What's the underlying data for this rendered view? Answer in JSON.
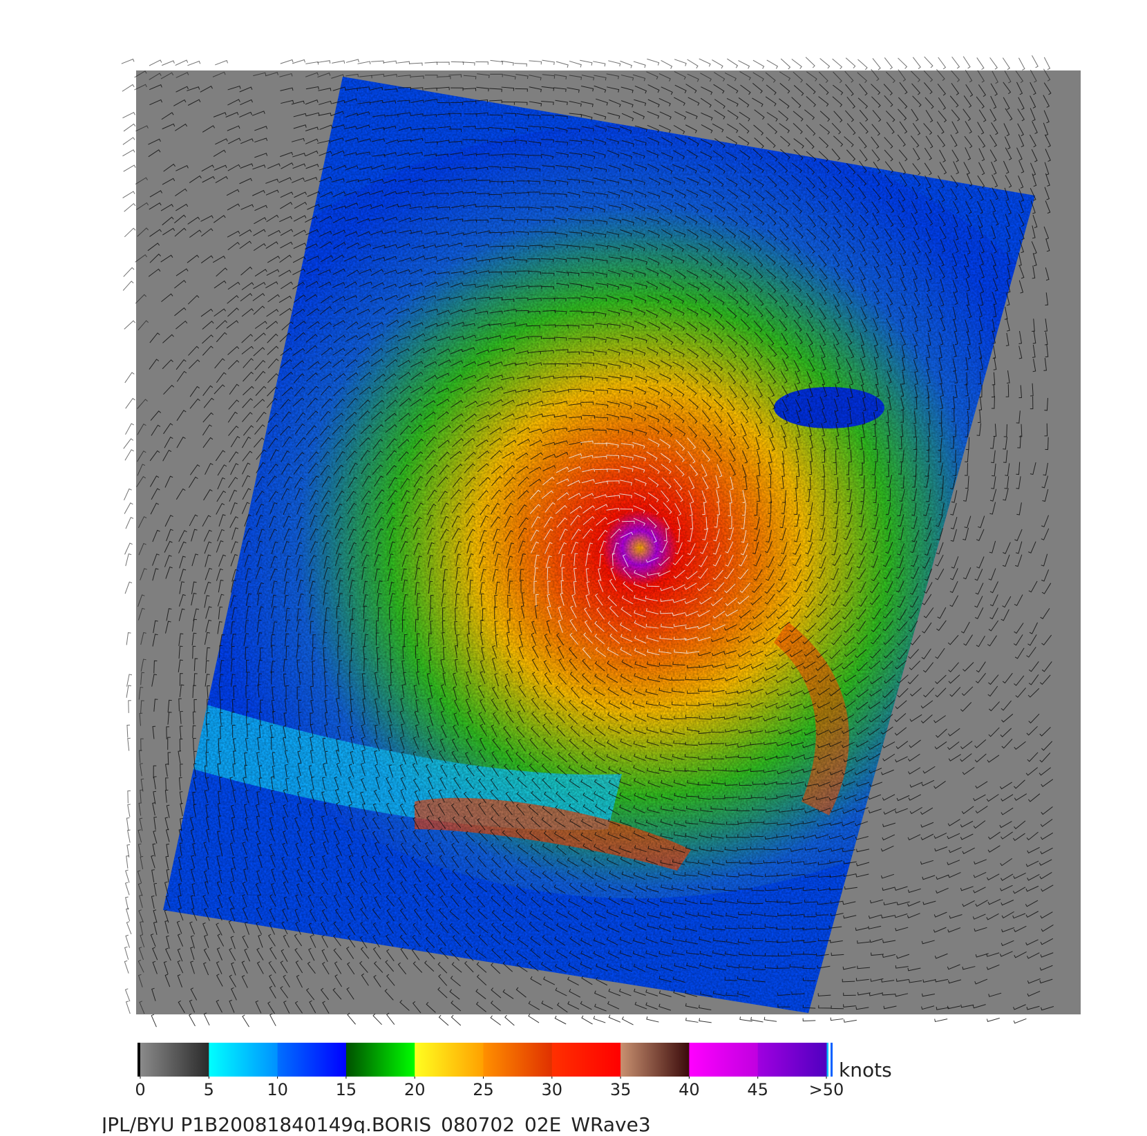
{
  "colorbar": {
    "unit": "knots",
    "ticks": [
      0,
      5,
      10,
      15,
      20,
      25,
      30,
      35,
      40,
      45,
      {
        "value": 50,
        "label": ">50"
      }
    ],
    "colors": [
      [
        "#8a8a8a",
        "#2a2a2a"
      ],
      [
        "#00ffff",
        "#0090ff"
      ],
      [
        "#0070ff",
        "#0000ff"
      ],
      [
        "#005000",
        "#00ff00"
      ],
      [
        "#ffff20",
        "#ffa000"
      ],
      [
        "#ff9000",
        "#e03000"
      ],
      [
        "#ff3000",
        "#ff0000"
      ],
      [
        "#c89070",
        "#3a0a0a"
      ],
      [
        "#ff00ff",
        "#c000e0"
      ],
      [
        "#a000e0",
        "#5000c0"
      ]
    ]
  },
  "caption": "JPL/BYU  P1B20081840149q.BORIS_080702_02E_WRave3"
}
